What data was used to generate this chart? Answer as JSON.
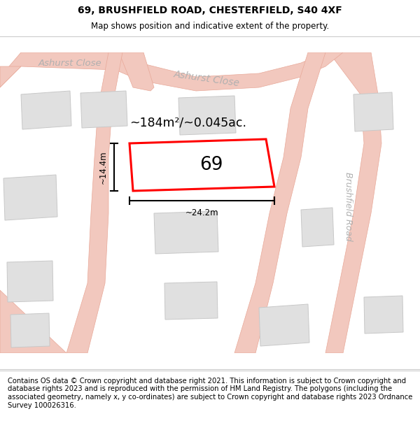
{
  "title": "69, BRUSHFIELD ROAD, CHESTERFIELD, S40 4XF",
  "subtitle": "Map shows position and indicative extent of the property.",
  "footer": "Contains OS data © Crown copyright and database right 2021. This information is subject to Crown copyright and database rights 2023 and is reproduced with the permission of HM Land Registry. The polygons (including the associated geometry, namely x, y co-ordinates) are subject to Crown copyright and database rights 2023 Ordnance Survey 100026316.",
  "area_text": "~184m²/~0.045ac.",
  "property_number": "69",
  "width_label": "~24.2m",
  "height_label": "~14.4m",
  "map_bg": "#f7f7f7",
  "road_fill": "#f2c8be",
  "road_outline": "#e8a898",
  "building_fill": "#e0e0e0",
  "building_outline": "#c8c8c8",
  "property_fill": "#ffffff",
  "property_outline": "#ff0000",
  "street_label_color": "#b0b0b0",
  "title_color": "#000000",
  "title_fontsize": 10,
  "subtitle_fontsize": 8.5,
  "footer_fontsize": 7.2
}
